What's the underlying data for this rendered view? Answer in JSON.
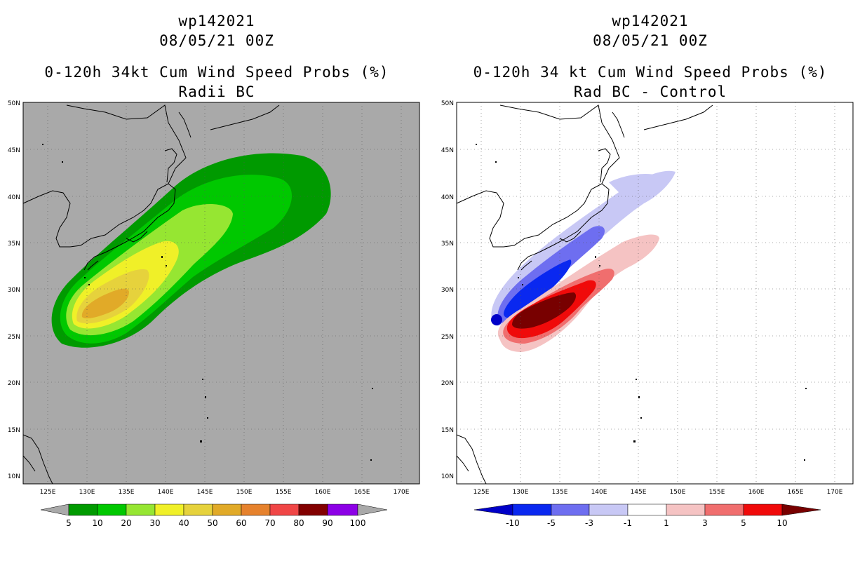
{
  "panels": [
    {
      "id": "left",
      "storm_id": "wp142021",
      "datetime": "08/05/21 00Z",
      "title": "0-120h 34kt Cum Wind Speed Probs (%)",
      "subtitle": "Radii BC",
      "background": "#a9a9a9",
      "lat_labels": [
        "50N",
        "45N",
        "40N",
        "35N",
        "30N",
        "25N",
        "20N",
        "15N",
        "10N"
      ],
      "lon_labels": [
        "125E",
        "130E",
        "135E",
        "140E",
        "145E",
        "150E",
        "155E",
        "160E",
        "165E",
        "170E"
      ],
      "colorbar": {
        "labels": [
          "5",
          "10",
          "20",
          "30",
          "40",
          "50",
          "60",
          "70",
          "80",
          "90",
          "100"
        ],
        "colors": [
          "#009a00",
          "#00c800",
          "#96e632",
          "#f0f028",
          "#e6d23c",
          "#e1aa28",
          "#e6822d",
          "#f04646",
          "#820000",
          "#8c00e6"
        ]
      }
    },
    {
      "id": "right",
      "storm_id": "wp142021",
      "datetime": "08/05/21 00Z",
      "title": "0-120h 34 kt Cum Wind Speed Probs (%)",
      "subtitle": "Rad BC - Control",
      "background": "#ffffff",
      "lat_labels": [
        "50N",
        "45N",
        "40N",
        "35N",
        "30N",
        "25N",
        "20N",
        "15N",
        "10N"
      ],
      "lon_labels": [
        "125E",
        "130E",
        "135E",
        "140E",
        "145E",
        "150E",
        "155E",
        "160E",
        "165E",
        "170E"
      ],
      "colorbar": {
        "labels": [
          "-10",
          "-5",
          "-3",
          "-1",
          "1",
          "3",
          "5",
          "10"
        ],
        "colors": [
          "#0000c8",
          "#0a28f0",
          "#6e6ef0",
          "#c8c8f5",
          "#ffffff",
          "#f5c3c3",
          "#f06e6e",
          "#f00a0a",
          "#780000"
        ]
      }
    }
  ]
}
